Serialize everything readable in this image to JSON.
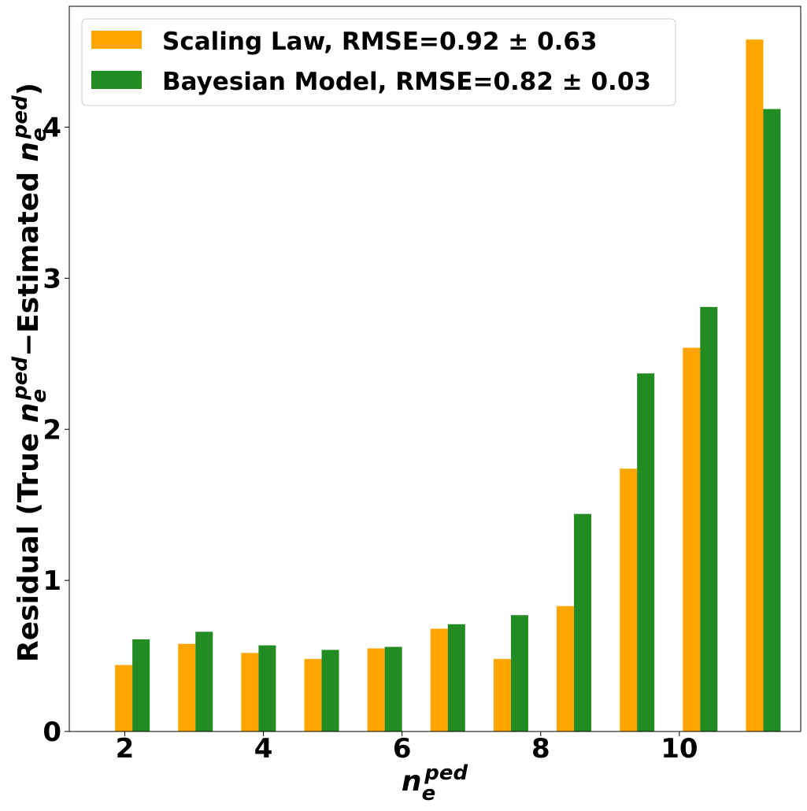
{
  "chart_data": {
    "type": "bar",
    "xlabel": {
      "base": "n",
      "sub": "e",
      "sup": "ped"
    },
    "ylabel": {
      "prefix": "Residual (True ",
      "middle": "−Estimated ",
      "suffix": ")",
      "var_base": "n",
      "var_sub": "e",
      "var_sup": "ped"
    },
    "xlim": [
      1.2,
      11.75
    ],
    "ylim": [
      0,
      4.8
    ],
    "x_ticks": [
      "2",
      "4",
      "6",
      "8",
      "10"
    ],
    "x_tick_values": [
      2,
      4,
      6,
      8,
      10
    ],
    "y_ticks": [
      "0",
      "1",
      "2",
      "3",
      "4"
    ],
    "y_tick_values": [
      0,
      1,
      2,
      3,
      4
    ],
    "grid": false,
    "legend_position": "top-left",
    "x": [
      1.86,
      2.77,
      3.68,
      4.59,
      5.5,
      6.41,
      7.32,
      8.23,
      9.14,
      10.05,
      10.96
    ],
    "bar_width": 0.25,
    "series": [
      {
        "name": "Scaling Law, RMSE=0.92 ± 0.63",
        "color": "#FFA500",
        "values": [
          0.44,
          0.58,
          0.52,
          0.48,
          0.55,
          0.68,
          0.48,
          0.83,
          1.74,
          2.54,
          4.58
        ]
      },
      {
        "name": "Bayesian Model, RMSE=0.82 ± 0.03",
        "color": "#228B22",
        "values": [
          0.61,
          0.66,
          0.57,
          0.54,
          0.56,
          0.71,
          0.77,
          1.44,
          2.37,
          2.81,
          4.12
        ]
      }
    ]
  }
}
